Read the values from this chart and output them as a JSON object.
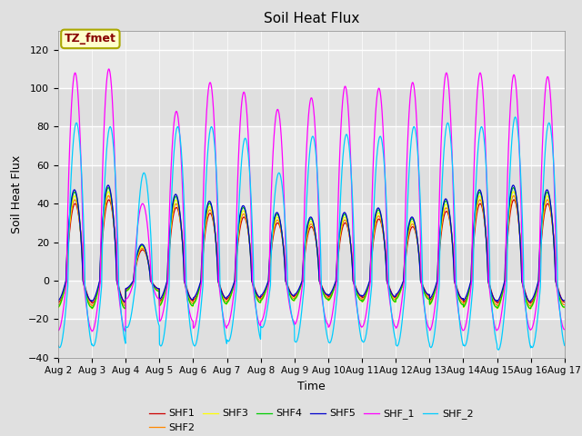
{
  "title": "Soil Heat Flux",
  "xlabel": "Time",
  "ylabel": "Soil Heat Flux",
  "ylim": [
    -40,
    130
  ],
  "yticks": [
    -40,
    -20,
    0,
    20,
    40,
    60,
    80,
    100,
    120
  ],
  "background_color": "#e0e0e0",
  "plot_bg_color": "#e8e8e8",
  "annotation_text": "TZ_fmet",
  "annotation_bg": "#ffffcc",
  "annotation_border": "#aaa800",
  "annotation_text_color": "#880000",
  "series": {
    "SHF1": {
      "color": "#cc0000"
    },
    "SHF2": {
      "color": "#ff8800"
    },
    "SHF3": {
      "color": "#ffff00"
    },
    "SHF4": {
      "color": "#00cc00"
    },
    "SHF5": {
      "color": "#0000cc"
    },
    "SHF_1": {
      "color": "#ff00ff"
    },
    "SHF_2": {
      "color": "#00ccff"
    }
  },
  "xtick_labels": [
    "Aug 2",
    "Aug 3",
    "Aug 4",
    "Aug 5",
    "Aug 6",
    "Aug 7",
    "Aug 8",
    "Aug 9",
    "Aug 10",
    "Aug 11",
    "Aug 12",
    "Aug 13",
    "Aug 14",
    "Aug 15",
    "Aug 16",
    "Aug 17"
  ],
  "n_days": 15,
  "pts_per_day": 144,
  "day_peaks_shf1": [
    40,
    42,
    16,
    38,
    35,
    33,
    30,
    28,
    30,
    32,
    28,
    36,
    40,
    42,
    40
  ],
  "day_peaks_shf_1": [
    108,
    110,
    40,
    88,
    103,
    98,
    89,
    95,
    101,
    100,
    103,
    108,
    108,
    107,
    106
  ],
  "day_peaks_shf_2": [
    82,
    80,
    56,
    80,
    80,
    74,
    56,
    75,
    76,
    75,
    80,
    82,
    80,
    85,
    82
  ]
}
